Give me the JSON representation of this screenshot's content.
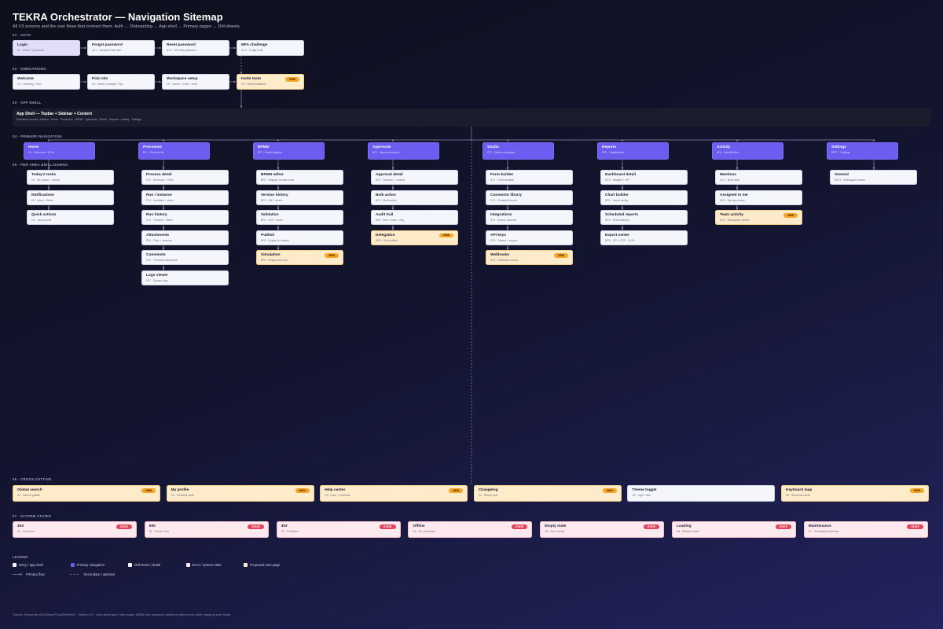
{
  "header": {
    "title": "TEKRA Orchestrator — Navigation Sitemap",
    "subtitle": "All V3 screens and the user flows that connect them. Auth → Onboarding → App shell → Primary pages → Drill-downs."
  },
  "auth": {
    "label": "01 · AUTH",
    "nodes": [
      {
        "title": "Login",
        "sub": "A1 · Email + password"
      },
      {
        "title": "Forgot password",
        "sub": "A1.1 · Request reset link"
      },
      {
        "title": "Reset password",
        "sub": "A1.2 · Set new password"
      },
      {
        "title": "MFA challenge",
        "sub": "A1.3 · 6-digit code"
      }
    ]
  },
  "onboarding": {
    "label": "02 · ONBOARDING",
    "nodes": [
      {
        "title": "Welcome",
        "sub": "O1 · Greeting + intro"
      },
      {
        "title": "Pick role",
        "sub": "O2 · Admin / Analyst / Ops"
      },
      {
        "title": "Workspace setup",
        "sub": "O3 · Name + invite + seat"
      },
      {
        "title": "Invite team",
        "sub": "O4 · Send invitations",
        "badge": "NEW"
      }
    ]
  },
  "shell": {
    "label": "03 · APP SHELL",
    "title": "App Shell — Topbar + Sidebar + Content",
    "sub": "Persistent chrome: Sidebar · Home · Processes · BPMN · Approvals · Studio · Reports · Activity · Settings"
  },
  "nav": {
    "label": "04 · PRIMARY NAVIGATION",
    "drill_label": "05 · PER-AREA DRILL-DOWNS",
    "areas": [
      {
        "title": "Home",
        "sub": "H1 · Welcome + KPIs",
        "children": [
          {
            "title": "Today's tasks",
            "sub": "H2 · My queue + pinned"
          },
          {
            "title": "Notifications",
            "sub": "H3 · Inbox + filters"
          },
          {
            "title": "Quick actions",
            "sub": "H4 · Launch pad"
          }
        ]
      },
      {
        "title": "Processes",
        "sub": "PL1 · Process list",
        "children": [
          {
            "title": "Process detail",
            "sub": "PL2 · Summary + KPIs"
          },
          {
            "title": "Run / instance",
            "sub": "PL3 · Variables + steps"
          },
          {
            "title": "Run history",
            "sub": "PL4 · Timeline + filters"
          },
          {
            "title": "Attachments",
            "sub": "PL5 · Files + versions"
          },
          {
            "title": "Comments",
            "sub": "PL6 · Threaded discussion"
          },
          {
            "title": "Logs viewer",
            "sub": "PL7 · System logs"
          }
        ]
      },
      {
        "title": "BPMN",
        "sub": "BP1 · Model registry",
        "children": [
          {
            "title": "BPMN editor",
            "sub": "BP2 · Diagram canvas tools"
          },
          {
            "title": "Version history",
            "sub": "BP3 · Diff + revert"
          },
          {
            "title": "Validation",
            "sub": "BP4 · Lint + errors"
          },
          {
            "title": "Publish",
            "sub": "BP5 · Deploy to runtime"
          },
          {
            "title": "Simulation",
            "sub": "BP6 · Replay test runs",
            "badge": "NEW"
          }
        ]
      },
      {
        "title": "Approvals",
        "sub": "AP1 · Approvals queue",
        "children": [
          {
            "title": "Approval detail",
            "sub": "AP2 · Decision + context"
          },
          {
            "title": "Bulk action",
            "sub": "AP3 · Multi-select"
          },
          {
            "title": "Audit trail",
            "sub": "AP4 · Who / when / why"
          },
          {
            "title": "Delegation",
            "sub": "AP5 · Out of office",
            "badge": "NEW"
          }
        ]
      },
      {
        "title": "Studio",
        "sub": "ST1 · Studio workspace",
        "children": [
          {
            "title": "Form builder",
            "sub": "ST2 · Field designer"
          },
          {
            "title": "Connector library",
            "sub": "ST3 · Reusable blocks"
          },
          {
            "title": "Integrations",
            "sub": "ST4 · Source systems"
          },
          {
            "title": "API keys",
            "sub": "ST5 · Tokens + scopes"
          },
          {
            "title": "Webhooks",
            "sub": "ST6 · Outbound events",
            "badge": "NEW"
          }
        ]
      },
      {
        "title": "Reports",
        "sub": "RP1 · Dashboards",
        "children": [
          {
            "title": "Dashboard detail",
            "sub": "RP2 · Widgets + KPI"
          },
          {
            "title": "Chart builder",
            "sub": "RP3 · Visual config"
          },
          {
            "title": "Scheduled reports",
            "sub": "RP4 · Email delivery"
          },
          {
            "title": "Export center",
            "sub": "RP5 · CSV / PDF / XLSX"
          }
        ]
      },
      {
        "title": "Activity",
        "sub": "AC1 · Activity feed",
        "children": [
          {
            "title": "Mentions",
            "sub": "AC2 · @me feed"
          },
          {
            "title": "Assigned to me",
            "sub": "AC3 · My open items"
          },
          {
            "title": "Team activity",
            "sub": "AC4 · Workspace stream",
            "badge": "NEW"
          }
        ]
      },
      {
        "title": "Settings",
        "sub": "SET1 · Settings",
        "children": [
          {
            "title": "General",
            "sub": "SET2 · Workspace basics"
          }
        ]
      }
    ]
  },
  "cross": {
    "label": "06 · CROSS-CUTTING",
    "nodes": [
      {
        "title": "Global search",
        "sub": "X1 · Search palette",
        "badge": "NEW"
      },
      {
        "title": "My profile",
        "sub": "X2 · Personal prefs",
        "badge": "NEW"
      },
      {
        "title": "Help center",
        "sub": "X3 · Docs + shortcuts",
        "badge": "NEW"
      },
      {
        "title": "Changelog",
        "sub": "X4 · What's new",
        "badge": "NEW"
      },
      {
        "title": "Theme toggle",
        "sub": "X5 · Light / dark"
      },
      {
        "title": "Keyboard map",
        "sub": "X6 · Shortcuts sheet",
        "badge": "NEW"
      }
    ]
  },
  "states": {
    "label": "07 · SYSTEM STATES",
    "nodes": [
      {
        "title": "404",
        "sub": "S1 · Not found",
        "badge": "STATE"
      },
      {
        "title": "500",
        "sub": "S2 · Server error",
        "badge": "STATE"
      },
      {
        "title": "403",
        "sub": "S3 · Forbidden",
        "badge": "STATE"
      },
      {
        "title": "Offline",
        "sub": "S4 · No connection",
        "badge": "STATE"
      },
      {
        "title": "Empty state",
        "sub": "S5 · Zero results",
        "badge": "STATE"
      },
      {
        "title": "Loading",
        "sub": "S6 · Skeleton shell",
        "badge": "STATE"
      },
      {
        "title": "Maintenance",
        "sub": "S7 · Scheduled downtime",
        "badge": "STATE"
      }
    ]
  },
  "legend": {
    "label": "LEGEND",
    "items": [
      "Entry / app shell",
      "Primary navigation",
      "Drill-down / detail",
      "Error / system state",
      "Proposed new page"
    ],
    "flows": [
      "Primary flow",
      "Secondary / optional"
    ]
  },
  "footer": "Source: Figma file xDo9Hbm4T5vuBnb9hWe · Section V3 · Auto-generated. New pages (NEW) are proposed additions discovered while mapping user flows."
}
